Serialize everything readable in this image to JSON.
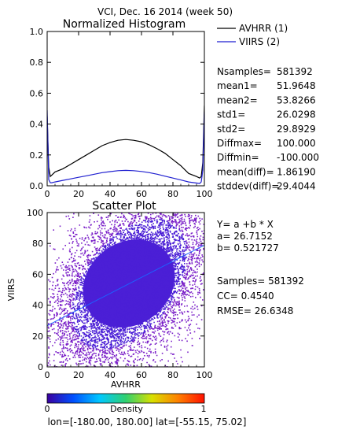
{
  "figure": {
    "title": "VCI,  Dec. 16 2014 (week 50)",
    "footer": "lon=[-180.00, 180.00] lat=[-55.15, 75.02]"
  },
  "chart_data": [
    {
      "type": "line",
      "title": "Normalized Histogram",
      "xlim": [
        0,
        100
      ],
      "ylim": [
        0,
        1.0
      ],
      "xticks": [
        "0",
        "20",
        "40",
        "60",
        "80",
        "100"
      ],
      "yticks": [
        "0.0",
        "0.2",
        "0.4",
        "0.6",
        "0.8",
        "1.0"
      ],
      "legend": [
        {
          "label": "AVHRR (1)",
          "color": "#000000"
        },
        {
          "label": "VIIRS (2)",
          "color": "#1f1fd0"
        }
      ],
      "series": [
        {
          "name": "AVHRR (1)",
          "color": "#000000",
          "x": [
            0,
            1,
            2,
            3,
            5,
            10,
            15,
            20,
            25,
            30,
            35,
            40,
            45,
            50,
            55,
            60,
            65,
            70,
            75,
            80,
            85,
            90,
            95,
            97,
            98,
            99,
            100
          ],
          "y": [
            0.45,
            0.12,
            0.06,
            0.07,
            0.09,
            0.11,
            0.14,
            0.17,
            0.2,
            0.23,
            0.26,
            0.28,
            0.295,
            0.3,
            0.295,
            0.285,
            0.265,
            0.24,
            0.21,
            0.17,
            0.13,
            0.08,
            0.06,
            0.05,
            0.06,
            0.15,
            0.52
          ]
        },
        {
          "name": "VIIRS (2)",
          "color": "#1f1fd0",
          "x": [
            0,
            1,
            2,
            3,
            5,
            10,
            15,
            20,
            25,
            30,
            35,
            40,
            45,
            50,
            55,
            60,
            65,
            70,
            75,
            80,
            85,
            90,
            95,
            97,
            98,
            99,
            100
          ],
          "y": [
            0.49,
            0.04,
            0.02,
            0.02,
            0.025,
            0.035,
            0.045,
            0.055,
            0.065,
            0.075,
            0.085,
            0.092,
            0.098,
            0.1,
            0.098,
            0.093,
            0.085,
            0.075,
            0.062,
            0.05,
            0.038,
            0.025,
            0.018,
            0.015,
            0.025,
            0.1,
            0.48
          ]
        }
      ],
      "stats": [
        {
          "label": "Nsamples=",
          "value": "581392"
        },
        {
          "label": "mean1=",
          "value": "51.9648"
        },
        {
          "label": "mean2=",
          "value": "53.8266"
        },
        {
          "label": "std1=",
          "value": "26.0298"
        },
        {
          "label": "std2=",
          "value": "29.8929"
        },
        {
          "label": "Diffmax=",
          "value": "100.000"
        },
        {
          "label": "Diffmin=",
          "value": "-100.000"
        },
        {
          "label": "mean(diff)=",
          "value": "1.86190"
        },
        {
          "label": "stddev(diff)=",
          "value": "29.4044"
        }
      ]
    },
    {
      "type": "scatter",
      "title": "Scatter Plot",
      "xlabel": "AVHRR",
      "ylabel": "VIIRS",
      "xlim": [
        0,
        100
      ],
      "ylim": [
        0,
        100
      ],
      "xticks": [
        "0",
        "20",
        "40",
        "60",
        "80",
        "100"
      ],
      "yticks": [
        "0",
        "20",
        "40",
        "60",
        "80",
        "100"
      ],
      "density_center": [
        52,
        54
      ],
      "density_spread": [
        26,
        30
      ],
      "density_correlation": 0.454,
      "colors": {
        "core": "#4b1fd6",
        "edge": "#7a1fc8",
        "axis": "#000000"
      },
      "fit_line": {
        "intercept": 26.7152,
        "slope": 0.521727,
        "color": "#1f5fff"
      },
      "fit_text": [
        "Y= a +b * X",
        "a= 26.7152",
        "b= 0.521727"
      ],
      "stats_text": [
        "Samples= 581392",
        "CC=  0.4540",
        "RMSE= 26.6348"
      ]
    }
  ],
  "colorbar": {
    "label": "Density",
    "min_label": "0",
    "max_label": "1",
    "colors": [
      "#3a00a0",
      "#0050ff",
      "#00c8ff",
      "#30d070",
      "#d8e000",
      "#ff8000",
      "#ff1000"
    ]
  }
}
